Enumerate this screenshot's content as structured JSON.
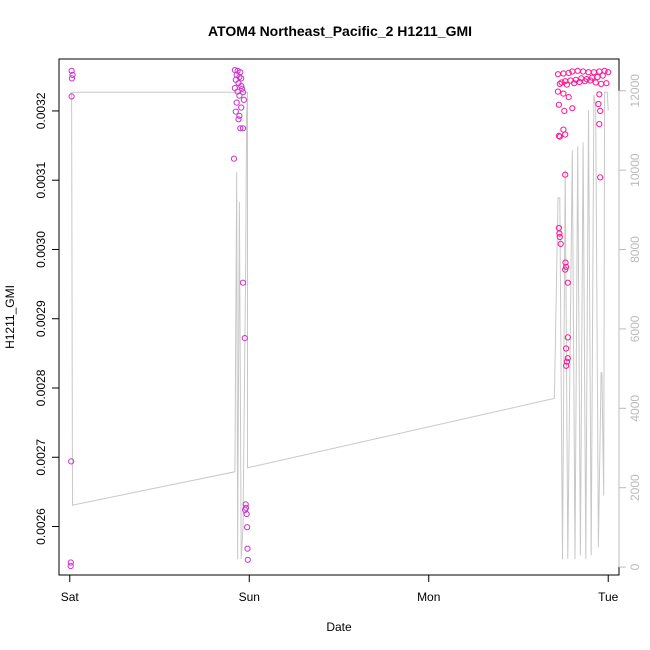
{
  "chart_data": {
    "type": "scatter",
    "title": "ATOM4 Northeast_Pacific_2 H1211_GMI",
    "xlabel": "Date",
    "ylabel": "H1211_GMI",
    "x_ticks": [
      {
        "x": 0,
        "label": "Sat"
      },
      {
        "x": 1,
        "label": "Sun"
      },
      {
        "x": 2,
        "label": "Mon"
      },
      {
        "x": 3,
        "label": "Tue"
      }
    ],
    "x_range": [
      -0.06,
      3.06
    ],
    "y_left_range": [
      0.00253,
      0.003275
    ],
    "y_left_ticks": [
      "0.0026",
      "0.0027",
      "0.0028",
      "0.0029",
      "0.0030",
      "0.0031",
      "0.0032"
    ],
    "y_left_tick_values": [
      0.0026,
      0.0027,
      0.0028,
      0.0029,
      0.003,
      0.0031,
      0.0032
    ],
    "y_right_range": [
      -200,
      12800
    ],
    "y_right_ticks": [
      "0",
      "2000",
      "4000",
      "6000",
      "8000",
      "10000",
      "12000"
    ],
    "y_right_tick_values": [
      0,
      2000,
      4000,
      6000,
      8000,
      10000,
      12000
    ],
    "grid": false,
    "colors": {
      "points_primary": "#ff1493",
      "points_secondary": "#cc33cc",
      "altitude_line": "#c8c8c8",
      "right_axis": "#bbbbbb"
    },
    "series": [
      {
        "points": [
          [
            0.01,
            0.003258
          ],
          [
            0.015,
            0.003252
          ],
          [
            0.012,
            0.003247
          ],
          [
            0.01,
            0.003221
          ],
          [
            0.008,
            0.002694
          ],
          [
            0.006,
            0.002548
          ],
          [
            0.005,
            0.002543
          ],
          [
            0.92,
            0.003259
          ],
          [
            0.935,
            0.003258
          ],
          [
            0.95,
            0.003256
          ],
          [
            0.93,
            0.003252
          ],
          [
            0.945,
            0.003249
          ],
          [
            0.955,
            0.003247
          ],
          [
            0.925,
            0.003245
          ],
          [
            0.94,
            0.00324
          ],
          [
            0.955,
            0.003236
          ],
          [
            0.96,
            0.003232
          ],
          [
            0.92,
            0.003233
          ],
          [
            0.935,
            0.003228
          ],
          [
            0.965,
            0.003227
          ],
          [
            0.945,
            0.003222
          ],
          [
            0.97,
            0.003216
          ],
          [
            0.93,
            0.003212
          ],
          [
            0.955,
            0.003205
          ],
          [
            0.925,
            0.003199
          ],
          [
            0.945,
            0.003193
          ],
          [
            0.94,
            0.003188
          ],
          [
            0.95,
            0.003175
          ],
          [
            0.965,
            0.003175
          ],
          [
            0.915,
            0.003131
          ],
          [
            0.965,
            0.002952
          ],
          [
            0.975,
            0.002872
          ],
          [
            0.98,
            0.002632
          ],
          [
            0.982,
            0.002627
          ],
          [
            0.977,
            0.002624
          ],
          [
            0.985,
            0.002618
          ],
          [
            0.988,
            0.002599
          ],
          [
            0.99,
            0.002568
          ],
          [
            0.992,
            0.002552
          ],
          [
            2.72,
            0.003253
          ],
          [
            2.75,
            0.003254
          ],
          [
            2.78,
            0.003255
          ],
          [
            2.8,
            0.003257
          ],
          [
            2.83,
            0.003258
          ],
          [
            2.86,
            0.003257
          ],
          [
            2.89,
            0.003256
          ],
          [
            2.92,
            0.003256
          ],
          [
            2.95,
            0.003257
          ],
          [
            2.98,
            0.003258
          ],
          [
            3.0,
            0.003256
          ],
          [
            2.97,
            0.003251
          ],
          [
            2.94,
            0.003249
          ],
          [
            2.91,
            0.003248
          ],
          [
            2.88,
            0.003246
          ],
          [
            2.85,
            0.003247
          ],
          [
            2.82,
            0.003245
          ],
          [
            2.79,
            0.003244
          ],
          [
            2.76,
            0.003243
          ],
          [
            2.74,
            0.003241
          ],
          [
            2.73,
            0.003239
          ],
          [
            2.77,
            0.003238
          ],
          [
            2.81,
            0.00324
          ],
          [
            2.84,
            0.003242
          ],
          [
            2.87,
            0.003243
          ],
          [
            2.9,
            0.003244
          ],
          [
            2.93,
            0.003241
          ],
          [
            2.96,
            0.003239
          ],
          [
            2.99,
            0.00324
          ],
          [
            2.72,
            0.003228
          ],
          [
            2.75,
            0.003225
          ],
          [
            2.78,
            0.00322
          ],
          [
            2.95,
            0.003224
          ],
          [
            2.725,
            0.003209
          ],
          [
            2.755,
            0.0032
          ],
          [
            2.8,
            0.003204
          ],
          [
            2.945,
            0.00321
          ],
          [
            2.955,
            0.0032
          ],
          [
            2.75,
            0.003173
          ],
          [
            2.725,
            0.003164
          ],
          [
            2.73,
            0.003163
          ],
          [
            2.76,
            0.003166
          ],
          [
            2.95,
            0.003181
          ],
          [
            2.76,
            0.003108
          ],
          [
            2.955,
            0.003104
          ],
          [
            2.725,
            0.003031
          ],
          [
            2.728,
            0.003023
          ],
          [
            2.73,
            0.003018
          ],
          [
            2.735,
            0.003008
          ],
          [
            2.762,
            0.002981
          ],
          [
            2.765,
            0.002975
          ],
          [
            2.76,
            0.002971
          ],
          [
            2.775,
            0.002952
          ],
          [
            2.775,
            0.002873
          ],
          [
            2.765,
            0.002857
          ],
          [
            2.775,
            0.002843
          ],
          [
            2.77,
            0.002838
          ],
          [
            2.765,
            0.002832
          ]
        ]
      }
    ],
    "altitude_path": [
      [
        0.005,
        11960
      ],
      [
        0.01,
        11900
      ],
      [
        0.015,
        1560
      ],
      [
        0.92,
        2400
      ],
      [
        0.93,
        9950
      ],
      [
        0.935,
        200
      ],
      [
        0.945,
        9200
      ],
      [
        0.955,
        200
      ],
      [
        0.965,
        1000
      ],
      [
        0.98,
        7600
      ],
      [
        0.985,
        11400
      ],
      [
        0.99,
        11960
      ],
      [
        0.01,
        11960
      ],
      [
        0.99,
        11960
      ],
      [
        0.99,
        2500
      ],
      [
        2.7,
        4250
      ],
      [
        2.72,
        9300
      ],
      [
        2.73,
        9300
      ],
      [
        2.745,
        200
      ],
      [
        2.76,
        10000
      ],
      [
        2.775,
        200
      ],
      [
        2.8,
        10500
      ],
      [
        2.815,
        200
      ],
      [
        2.83,
        10600
      ],
      [
        2.845,
        300
      ],
      [
        2.86,
        10700
      ],
      [
        2.875,
        200
      ],
      [
        2.89,
        11500
      ],
      [
        2.905,
        300
      ],
      [
        2.92,
        11900
      ],
      [
        2.93,
        11600
      ],
      [
        2.945,
        500
      ],
      [
        2.96,
        4900
      ],
      [
        2.965,
        4900
      ],
      [
        2.975,
        1800
      ],
      [
        2.98,
        11960
      ],
      [
        2.995,
        11960
      ],
      [
        3.0,
        11500
      ]
    ]
  }
}
